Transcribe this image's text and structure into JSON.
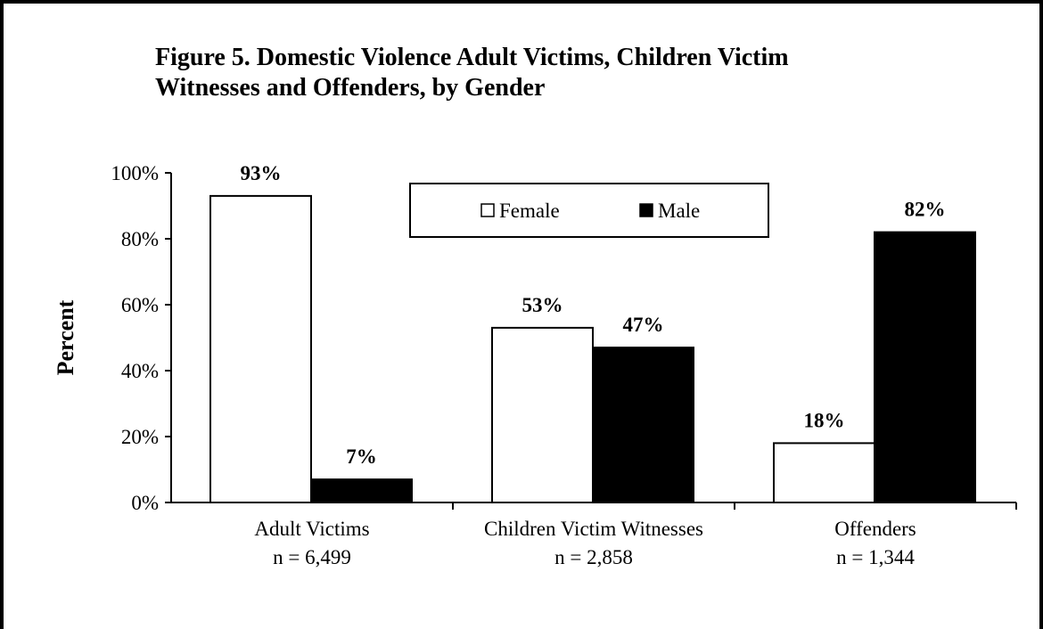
{
  "chart_data": {
    "type": "bar",
    "title": [
      "Figure 5.  Domestic Violence Adult Victims, Children Victim",
      "Witnesses and Offenders, by Gender"
    ],
    "xlabel": "",
    "ylabel": "Percent",
    "categories": [
      {
        "name": "Adult Victims",
        "n": "n = 6,499"
      },
      {
        "name": "Children Victim Witnesses",
        "n": "n = 2,858"
      },
      {
        "name": "Offenders",
        "n": "n = 1,344"
      }
    ],
    "series": [
      {
        "name": "Female",
        "values": [
          93,
          53,
          18
        ],
        "labels": [
          "93%",
          "53%",
          "18%"
        ],
        "color": "#ffffff"
      },
      {
        "name": "Male",
        "values": [
          7,
          47,
          82
        ],
        "labels": [
          "7%",
          "47%",
          "82%"
        ],
        "color": "#000000"
      }
    ],
    "ylim": [
      0,
      100
    ],
    "yticks": [
      {
        "value": 0,
        "label": "0%"
      },
      {
        "value": 20,
        "label": "20%"
      },
      {
        "value": 40,
        "label": "40%"
      },
      {
        "value": 60,
        "label": "60%"
      },
      {
        "value": 80,
        "label": "80%"
      },
      {
        "value": 100,
        "label": "100%"
      }
    ],
    "grid": false,
    "legend": {
      "placement": "top-center",
      "symbols": [
        "□",
        "■"
      ]
    }
  }
}
